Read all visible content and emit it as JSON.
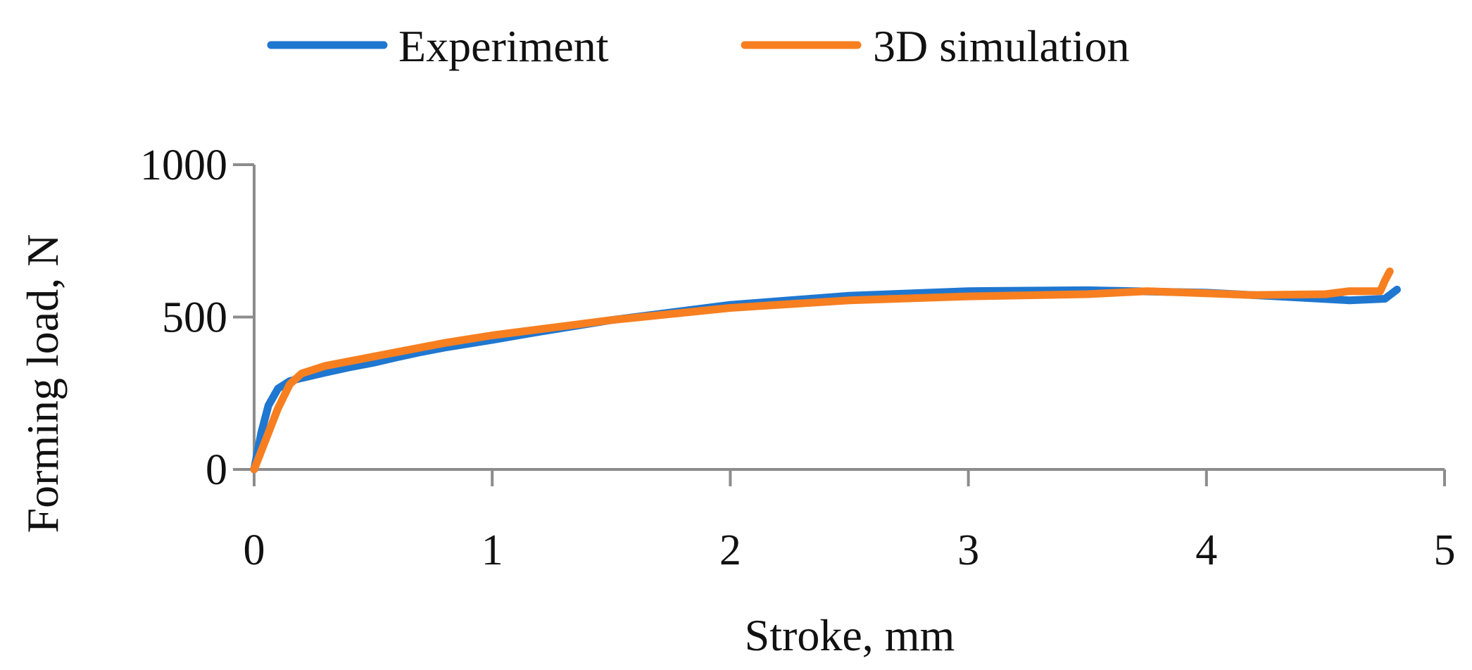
{
  "chart_data": {
    "type": "line",
    "title": "",
    "xlabel": "Stroke, mm",
    "ylabel": "Forming load, N",
    "xlim": [
      0,
      5
    ],
    "ylim": [
      0,
      1000
    ],
    "x_ticks": [
      0,
      1,
      2,
      3,
      4,
      5
    ],
    "y_ticks": [
      0,
      500,
      1000
    ],
    "x_tick_labels": [
      "0",
      "1",
      "2",
      "3",
      "4",
      "5"
    ],
    "y_tick_labels": [
      "0",
      "500",
      "1000"
    ],
    "grid": false,
    "legend_position": "top-center",
    "series": [
      {
        "name": "Experiment",
        "color": "#1f77d0",
        "x": [
          0,
          0.03,
          0.06,
          0.1,
          0.15,
          0.2,
          0.3,
          0.4,
          0.5,
          0.6,
          0.7,
          0.8,
          1.0,
          1.2,
          1.5,
          2.0,
          2.5,
          3.0,
          3.5,
          4.0,
          4.3,
          4.6,
          4.75,
          4.8
        ],
        "y": [
          0,
          120,
          210,
          265,
          290,
          300,
          318,
          335,
          350,
          368,
          385,
          400,
          425,
          452,
          490,
          540,
          570,
          585,
          588,
          580,
          568,
          555,
          560,
          590
        ]
      },
      {
        "name": "3D simulation",
        "color": "#f77f20",
        "x": [
          0,
          0.05,
          0.1,
          0.15,
          0.2,
          0.3,
          0.4,
          0.5,
          0.6,
          0.7,
          0.8,
          1.0,
          1.2,
          1.5,
          2.0,
          2.5,
          3.0,
          3.5,
          3.75,
          4.0,
          4.2,
          4.5,
          4.6,
          4.73,
          4.75,
          4.77
        ],
        "y": [
          0,
          100,
          200,
          280,
          315,
          340,
          355,
          370,
          385,
          400,
          415,
          440,
          460,
          490,
          530,
          555,
          568,
          575,
          585,
          578,
          572,
          575,
          585,
          585,
          620,
          650
        ]
      }
    ]
  }
}
